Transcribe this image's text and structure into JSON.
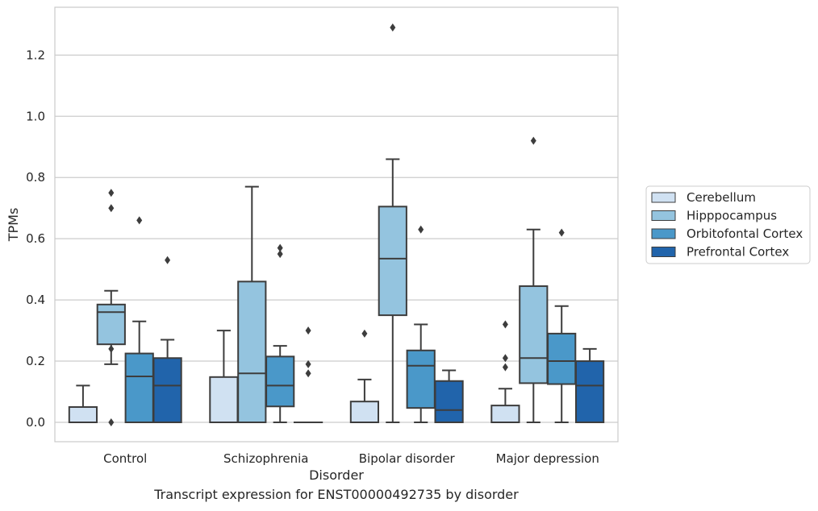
{
  "chart_data": {
    "type": "box",
    "xlabel": "Disorder",
    "ylabel": "TPMs",
    "caption": "Transcript expression for ENST00000492735 by disorder",
    "ylim": [
      -0.065,
      1.36
    ],
    "yticks": [
      0.0,
      0.2,
      0.4,
      0.6,
      0.8,
      1.0,
      1.2
    ],
    "ytick_labels": [
      "0.0",
      "0.2",
      "0.4",
      "0.6",
      "0.8",
      "1.0",
      "1.2"
    ],
    "grid": "horizontal",
    "legend_position": "right",
    "categories": [
      "Control",
      "Schizophrenia",
      "Bipolar disorder",
      "Major depression"
    ],
    "series": [
      {
        "name": "Cerebellum",
        "color": "#d0e1f2",
        "boxes": [
          {
            "whislo": 0.0,
            "q1": 0.0,
            "med": 0.0,
            "q3": 0.05,
            "whishi": 0.12,
            "fliers": []
          },
          {
            "whislo": 0.0,
            "q1": 0.0,
            "med": 0.0,
            "q3": 0.148,
            "whishi": 0.3,
            "fliers": []
          },
          {
            "whislo": 0.0,
            "q1": 0.0,
            "med": 0.0,
            "q3": 0.068,
            "whishi": 0.14,
            "fliers": [
              0.29
            ]
          },
          {
            "whislo": 0.0,
            "q1": 0.0,
            "med": 0.0,
            "q3": 0.055,
            "whishi": 0.11,
            "fliers": [
              0.18,
              0.21,
              0.32
            ]
          }
        ]
      },
      {
        "name": "Hipppocampus",
        "color": "#94c4df",
        "boxes": [
          {
            "whislo": 0.19,
            "q1": 0.255,
            "med": 0.36,
            "q3": 0.385,
            "whishi": 0.43,
            "fliers": [
              0.0,
              0.24,
              0.7,
              0.75
            ]
          },
          {
            "whislo": 0.0,
            "q1": 0.0,
            "med": 0.16,
            "q3": 0.46,
            "whishi": 0.77,
            "fliers": []
          },
          {
            "whislo": 0.0,
            "q1": 0.35,
            "med": 0.535,
            "q3": 0.705,
            "whishi": 0.86,
            "fliers": [
              1.29
            ]
          },
          {
            "whislo": 0.0,
            "q1": 0.128,
            "med": 0.21,
            "q3": 0.445,
            "whishi": 0.63,
            "fliers": [
              0.92
            ]
          }
        ]
      },
      {
        "name": "Orbitofontal Cortex",
        "color": "#4a98c9",
        "boxes": [
          {
            "whislo": 0.0,
            "q1": 0.0,
            "med": 0.15,
            "q3": 0.225,
            "whishi": 0.33,
            "fliers": [
              0.66
            ]
          },
          {
            "whislo": 0.0,
            "q1": 0.052,
            "med": 0.12,
            "q3": 0.215,
            "whishi": 0.25,
            "fliers": [
              0.55,
              0.57
            ]
          },
          {
            "whislo": 0.0,
            "q1": 0.047,
            "med": 0.185,
            "q3": 0.235,
            "whishi": 0.32,
            "fliers": [
              0.63
            ]
          },
          {
            "whislo": 0.0,
            "q1": 0.125,
            "med": 0.2,
            "q3": 0.29,
            "whishi": 0.38,
            "fliers": [
              0.62
            ]
          }
        ]
      },
      {
        "name": "Prefrontal Cortex",
        "color": "#2164ab",
        "boxes": [
          {
            "whislo": 0.0,
            "q1": 0.0,
            "med": 0.12,
            "q3": 0.21,
            "whishi": 0.27,
            "fliers": [
              0.53
            ]
          },
          {
            "whislo": 0.0,
            "q1": 0.0,
            "med": 0.0,
            "q3": 0.0,
            "whishi": 0.0,
            "fliers": [
              0.16,
              0.19,
              0.3
            ]
          },
          {
            "whislo": 0.0,
            "q1": 0.0,
            "med": 0.04,
            "q3": 0.135,
            "whishi": 0.17,
            "fliers": []
          },
          {
            "whislo": 0.0,
            "q1": 0.0,
            "med": 0.12,
            "q3": 0.2,
            "whishi": 0.24,
            "fliers": []
          }
        ]
      }
    ]
  }
}
